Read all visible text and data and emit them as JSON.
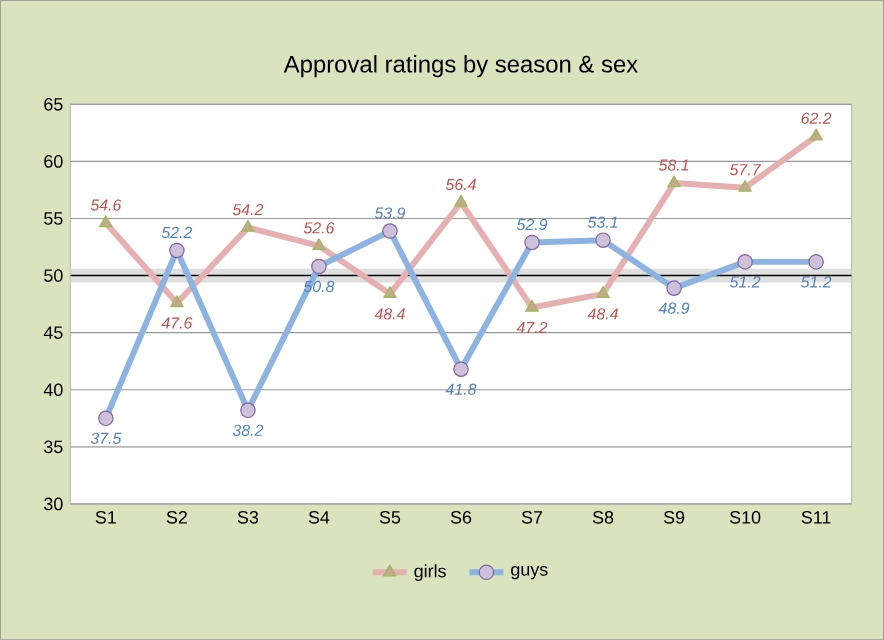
{
  "chart_data": {
    "type": "line",
    "title": "Approval ratings by season & sex",
    "categories": [
      "S1",
      "S2",
      "S3",
      "S4",
      "S5",
      "S6",
      "S7",
      "S8",
      "S9",
      "S10",
      "S11"
    ],
    "series": [
      {
        "name": "girls",
        "color": "#e6b0b0",
        "marker": "triangle",
        "values": [
          54.6,
          47.6,
          54.2,
          52.6,
          48.4,
          56.4,
          47.2,
          48.4,
          58.1,
          57.7,
          62.2
        ]
      },
      {
        "name": "guys",
        "color": "#8db3e2",
        "marker": "circle",
        "values": [
          37.5,
          52.2,
          38.2,
          50.8,
          53.9,
          41.8,
          52.9,
          53.1,
          48.9,
          51.2,
          51.2
        ]
      }
    ],
    "ylim": [
      30,
      65
    ],
    "yticks": [
      30,
      35,
      40,
      45,
      50,
      55,
      60,
      65
    ],
    "grid": "y",
    "ref_lines": [
      {
        "axis": "y",
        "value": 50,
        "color": "#000000"
      }
    ],
    "bands": [
      {
        "axis": "y",
        "from": 49.4,
        "to": 50.6,
        "color": "#dfdfdf"
      }
    ],
    "data_labels": true,
    "legend": "bottom",
    "line_style": "solid"
  }
}
